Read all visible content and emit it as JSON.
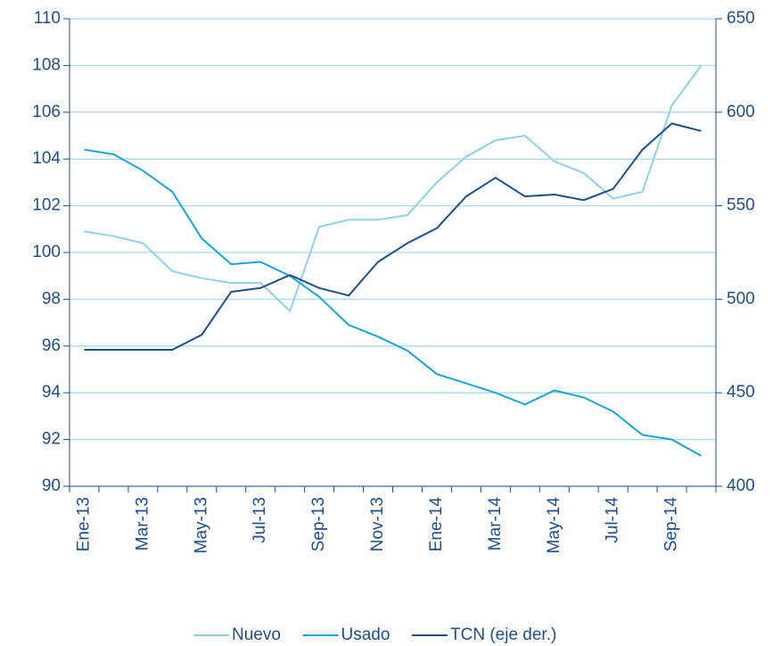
{
  "chart_data": {
    "type": "line",
    "categories": [
      "Ene-13",
      null,
      "Mar-13",
      null,
      "May-13",
      null,
      "Jul-13",
      null,
      "Sep-13",
      null,
      "Nov-13",
      null,
      "Ene-14",
      null,
      "Mar-14",
      null,
      "May-14",
      null,
      "Jul-14",
      null,
      "Sep-14",
      null
    ],
    "series": [
      {
        "name": "Nuevo",
        "color": "#8fd0e8",
        "values": [
          100.9,
          100.7,
          100.4,
          99.2,
          98.9,
          98.7,
          98.7,
          97.5,
          101.1,
          101.4,
          101.4,
          101.6,
          103.0,
          104.1,
          104.8,
          105.0,
          103.9,
          103.4,
          102.3,
          102.6,
          106.3,
          108.0
        ]
      },
      {
        "name": "Usado",
        "color": "#1aa3dc",
        "values": [
          104.4,
          104.2,
          103.5,
          102.6,
          100.6,
          99.5,
          99.6,
          99.0,
          98.1,
          96.9,
          96.4,
          95.8,
          94.8,
          94.4,
          94.0,
          93.5,
          94.1,
          93.8,
          93.2,
          92.2,
          92.0,
          91.3
        ]
      },
      {
        "name": "TCN (eje der.)",
        "color": "#1f4e89",
        "axis": "y2",
        "values": [
          473,
          473,
          473,
          473,
          481,
          504,
          506,
          513,
          506,
          502,
          520,
          530,
          538,
          555,
          565,
          555,
          556,
          553,
          559,
          580,
          594,
          590
        ]
      }
    ],
    "ylim": [
      90,
      110
    ],
    "yticks": [
      90,
      92,
      94,
      96,
      98,
      100,
      102,
      104,
      106,
      108,
      110
    ],
    "y2lim": [
      400,
      650
    ],
    "y2ticks": [
      400,
      450,
      500,
      550,
      600,
      650
    ],
    "grid": true,
    "legend": "bottom"
  }
}
